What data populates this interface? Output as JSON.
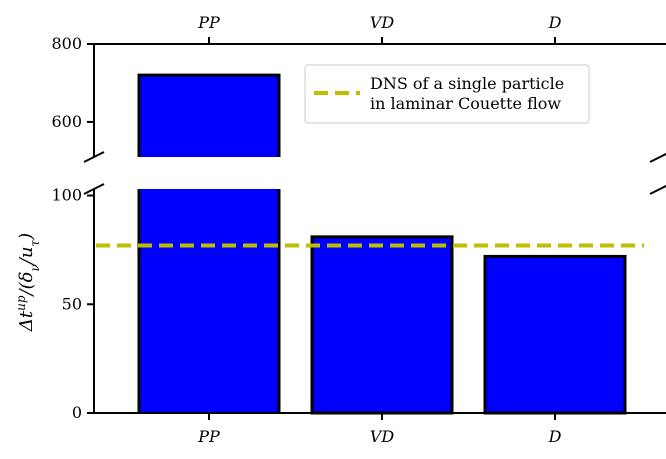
{
  "chart_data": {
    "type": "bar",
    "categories": [
      "PP",
      "VD",
      "D"
    ],
    "values": [
      720,
      81,
      72
    ],
    "ylabel": "Δt^up/(δ_ν/u_τ)",
    "y_axis": "broken",
    "lower_ylim": [
      0,
      103
    ],
    "upper_ylim": [
      510,
      800
    ],
    "lower_yticks": [
      "0",
      "50",
      "100"
    ],
    "upper_yticks": [
      "600",
      "800"
    ],
    "reference_line": {
      "label_line1": "DNS of a single particle",
      "label_line2": "in laminar Couette flow",
      "value": 77,
      "color": "#bfbf00",
      "style": "dashed"
    },
    "bar_color": "#0000ff",
    "legend_position": "upper right of top panel",
    "grid": false
  }
}
